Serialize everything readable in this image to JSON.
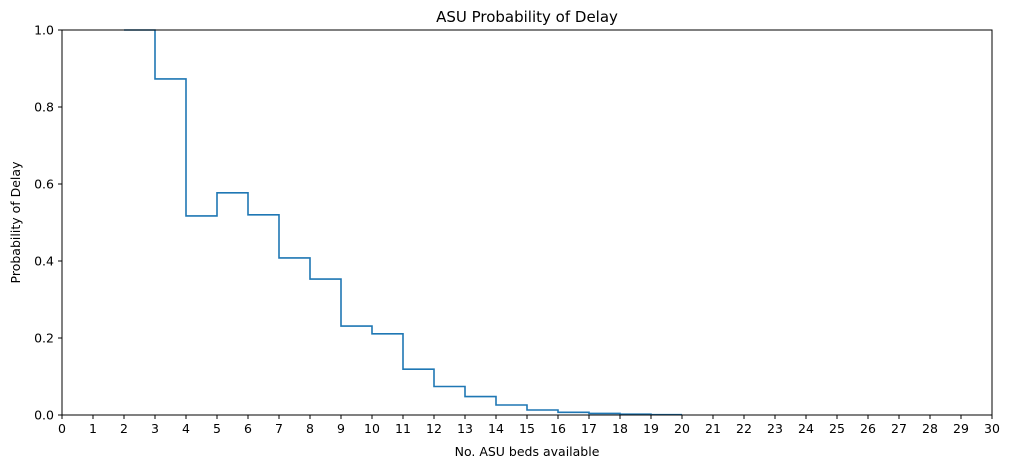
{
  "chart_data": {
    "type": "line",
    "drawstyle": "steps-post",
    "title": "ASU Probability of Delay",
    "xlabel": "No. ASU beds available",
    "ylabel": "Probability of Delay",
    "xlim": [
      0,
      30
    ],
    "ylim": [
      0,
      1.0
    ],
    "grid": false,
    "legend": "none",
    "x_ticks": [
      "0",
      "1",
      "2",
      "3",
      "4",
      "5",
      "6",
      "7",
      "8",
      "9",
      "10",
      "11",
      "12",
      "13",
      "14",
      "15",
      "16",
      "17",
      "18",
      "19",
      "20",
      "21",
      "22",
      "23",
      "24",
      "25",
      "26",
      "27",
      "28",
      "29",
      "30"
    ],
    "y_ticks": [
      "0.0",
      "0.2",
      "0.4",
      "0.6",
      "0.8",
      "1.0"
    ],
    "series": [
      {
        "color": "#1f77b4",
        "x": [
          2,
          3,
          4,
          5,
          6,
          7,
          8,
          9,
          10,
          11,
          12,
          13,
          14,
          15,
          16,
          17,
          18,
          19,
          20
        ],
        "y": [
          1.0,
          0.873,
          0.517,
          0.577,
          0.52,
          0.408,
          0.353,
          0.231,
          0.211,
          0.119,
          0.074,
          0.048,
          0.026,
          0.013,
          0.007,
          0.004,
          0.002,
          0.001,
          0.001
        ]
      }
    ]
  }
}
